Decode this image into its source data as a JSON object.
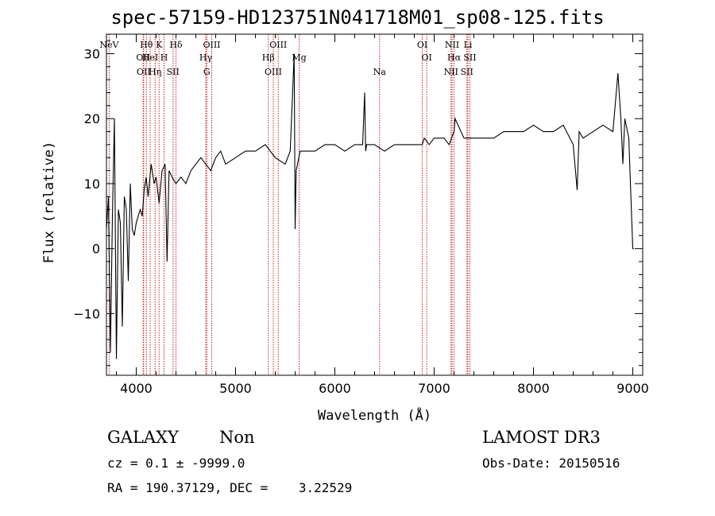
{
  "chart_data": {
    "type": "line",
    "title": "spec-57159-HD123751N041718M01_sp08-125.fits",
    "xlabel": "Wavelength (Å)",
    "ylabel": "Flux (relative)",
    "xlim": [
      3700,
      9100
    ],
    "ylim": [
      -19.5,
      33
    ],
    "xticks": [
      4000,
      5000,
      6000,
      7000,
      8000,
      9000
    ],
    "yticks": [
      -10,
      0,
      10,
      20,
      30
    ],
    "series": [
      {
        "name": "spectrum",
        "x": [
          3700,
          3720,
          3740,
          3760,
          3780,
          3800,
          3820,
          3840,
          3860,
          3880,
          3900,
          3920,
          3940,
          3960,
          3980,
          4000,
          4020,
          4040,
          4060,
          4080,
          4100,
          4120,
          4150,
          4180,
          4200,
          4230,
          4260,
          4290,
          4310,
          4330,
          4360,
          4400,
          4450,
          4500,
          4550,
          4600,
          4650,
          4700,
          4750,
          4800,
          4850,
          4900,
          5000,
          5100,
          5200,
          5300,
          5400,
          5500,
          5550,
          5590,
          5600,
          5610,
          5650,
          5700,
          5800,
          5900,
          6000,
          6100,
          6200,
          6280,
          6300,
          6310,
          6320,
          6400,
          6500,
          6600,
          6700,
          6800,
          6880,
          6900,
          6950,
          7000,
          7100,
          7150,
          7200,
          7210,
          7300,
          7350,
          7400,
          7500,
          7600,
          7700,
          7800,
          7900,
          8000,
          8100,
          8200,
          8300,
          8400,
          8440,
          8460,
          8500,
          8600,
          8700,
          8800,
          8850,
          8880,
          8900,
          8920,
          8960,
          9000,
          9010
        ],
        "y": [
          3,
          8,
          -16,
          5,
          20,
          -17,
          6,
          4,
          -12,
          8,
          6,
          -5,
          10,
          3,
          2,
          4,
          5,
          6,
          5,
          9,
          11,
          8,
          13,
          10,
          11,
          7,
          12,
          13,
          -2,
          12,
          11,
          10,
          11,
          10,
          12,
          13,
          14,
          13,
          12,
          14,
          15,
          13,
          14,
          15,
          15,
          16,
          14,
          13,
          15,
          30,
          3,
          12,
          15,
          15,
          15,
          16,
          16,
          15,
          16,
          16,
          24,
          15,
          16,
          16,
          15,
          16,
          16,
          16,
          16,
          17,
          16,
          17,
          17,
          16,
          18,
          20,
          17,
          17,
          17,
          17,
          17,
          18,
          18,
          18,
          19,
          18,
          18,
          19,
          16,
          9,
          18,
          17,
          18,
          19,
          18,
          27,
          20,
          13,
          20,
          17,
          0,
          0
        ]
      }
    ],
    "emission_lines": [
      {
        "label": "NeV",
        "wavelength": 3727
      },
      {
        "label": "OII",
        "wavelength": 4070
      },
      {
        "label": "OII",
        "wavelength": 4075
      },
      {
        "label": "Hθ",
        "wavelength": 4102
      },
      {
        "label": "HeI",
        "wavelength": 4140
      },
      {
        "label": "Hη",
        "wavelength": 4190
      },
      {
        "label": "K",
        "wavelength": 4230
      },
      {
        "label": "H",
        "wavelength": 4280
      },
      {
        "label": "SII",
        "wavelength": 4370
      },
      {
        "label": "Hδ",
        "wavelength": 4400
      },
      {
        "label": "Hγ",
        "wavelength": 4700
      },
      {
        "label": "G",
        "wavelength": 4710
      },
      {
        "label": "OIII",
        "wavelength": 4760
      },
      {
        "label": "Hβ",
        "wavelength": 5330
      },
      {
        "label": "OIII",
        "wavelength": 5380
      },
      {
        "label": "OIII",
        "wavelength": 5430
      },
      {
        "label": "Mg",
        "wavelength": 5640
      },
      {
        "label": "Na",
        "wavelength": 6450
      },
      {
        "label": "OI",
        "wavelength": 6880
      },
      {
        "label": "OI",
        "wavelength": 6925
      },
      {
        "label": "NII",
        "wavelength": 7170
      },
      {
        "label": "NII",
        "wavelength": 7180
      },
      {
        "label": "Hα",
        "wavelength": 7200
      },
      {
        "label": "SII",
        "wavelength": 7330
      },
      {
        "label": "Li",
        "wavelength": 7340
      },
      {
        "label": "SII",
        "wavelength": 7360
      }
    ]
  },
  "info": {
    "classification": "GALAXY",
    "subclass": "Non",
    "survey": "LAMOST DR3",
    "cz": "cz = 0.1 ± -9999.0",
    "obs_date": "Obs-Date: 20150516",
    "coords": "RA = 190.37129, DEC =    3.22529"
  },
  "colors": {
    "spectrum": "#000000",
    "lines": "#cc2222"
  }
}
